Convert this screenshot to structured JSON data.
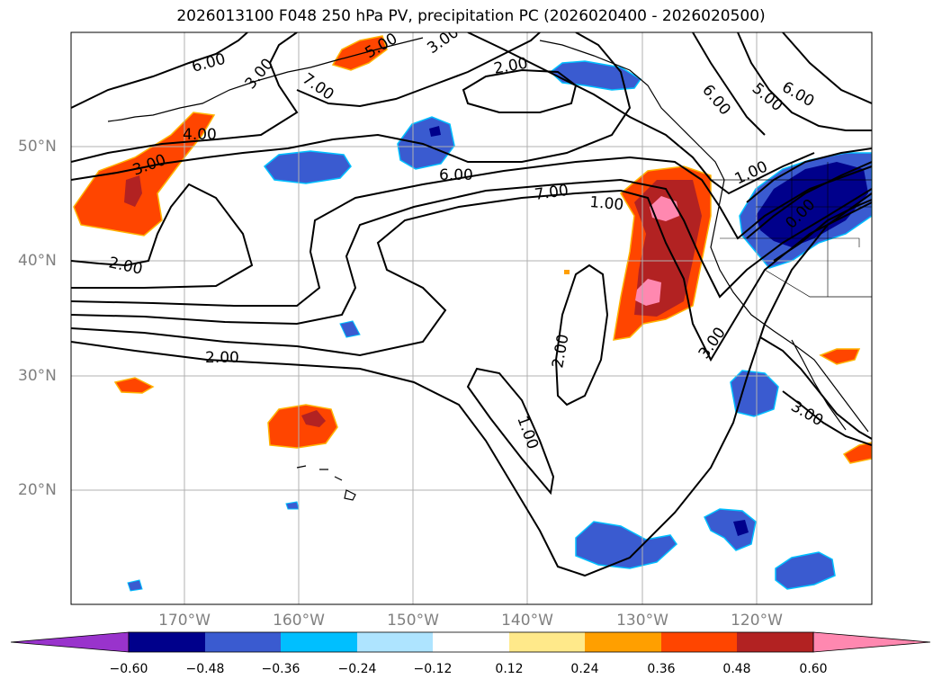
{
  "title": "2026013100 F048 250 hPa PV, precipitation PC (2026020400 - 2026020500)",
  "map": {
    "lon_labels": [
      "170°W",
      "160°W",
      "150°W",
      "140°W",
      "130°W",
      "120°W"
    ],
    "lat_labels": [
      "50°N",
      "40°N",
      "30°N",
      "20°N"
    ],
    "contour_labels": [
      "6.00",
      "3.00",
      "7.00",
      "5.00",
      "3.00",
      "2.00",
      "6.00",
      "5.00",
      "6.00",
      "4.00",
      "3.00",
      "6.00",
      "7.00",
      "1.00",
      "1.00",
      "2.00",
      "2.00",
      "2.00",
      "1.00",
      "3.00",
      "0.00",
      "3.00"
    ]
  },
  "colorbar": {
    "ticks": [
      "−0.60",
      "−0.48",
      "−0.36",
      "−0.24",
      "−0.12",
      "0.12",
      "0.24",
      "0.36",
      "0.48",
      "0.60"
    ],
    "colors": [
      "#9933cc",
      "#00008b",
      "#3a5bd0",
      "#00bfff",
      "#aee4ff",
      "#ffffff",
      "#ffe98a",
      "#ff9f00",
      "#ff4500",
      "#b22222",
      "#ff88b0"
    ]
  },
  "colors": {
    "land_outline": "#000000",
    "grid": "#b0b0b0",
    "contour": "#000000"
  }
}
